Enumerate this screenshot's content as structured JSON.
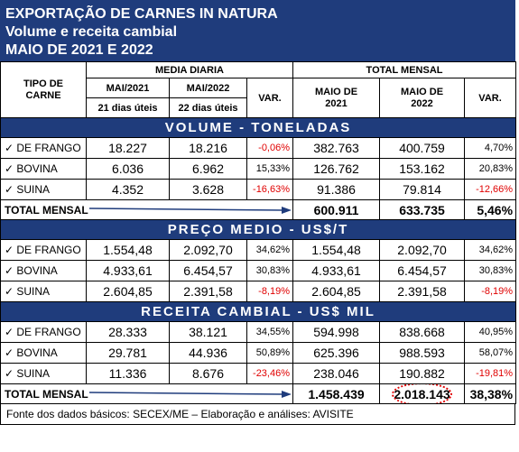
{
  "title": [
    "EXPORTAÇÃO DE CARNES IN NATURA",
    "Volume e receita cambial",
    "MAIO DE 2021 E 2022"
  ],
  "header": {
    "tipo": "TIPO DE CARNE",
    "media": "MEDIA DIARIA",
    "total": "TOTAL MENSAL",
    "mai2021": "MAI/2021",
    "mai2022": "MAI/2022",
    "dias2021": "21 dias úteis",
    "dias2022": "22 dias úteis",
    "var1": "VAR.",
    "maio2021": "MAIO DE 2021",
    "maio2022": "MAIO DE 2022",
    "var2": "VAR."
  },
  "sections": [
    {
      "title": "VOLUME - TONELADAS",
      "rows": [
        [
          "✓ DE FRANGO",
          "18.227",
          "18.216",
          "-0,06%",
          "382.763",
          "400.759",
          "4,70%"
        ],
        [
          "✓ BOVINA",
          "6.036",
          "6.962",
          "15,33%",
          "126.762",
          "153.162",
          "20,83%"
        ],
        [
          "✓ SUINA",
          "4.352",
          "3.628",
          "-16,63%",
          "91.386",
          "79.814",
          "-12,66%"
        ]
      ],
      "total": [
        "TOTAL MENSAL",
        "600.911",
        "633.735",
        "5,46%"
      ]
    },
    {
      "title": "PREÇO MEDIO - US$/T",
      "rows": [
        [
          "✓ DE FRANGO",
          "1.554,48",
          "2.092,70",
          "34,62%",
          "1.554,48",
          "2.092,70",
          "34,62%"
        ],
        [
          "✓ BOVINA",
          "4.933,61",
          "6.454,57",
          "30,83%",
          "4.933,61",
          "6.454,57",
          "30,83%"
        ],
        [
          "✓ SUINA",
          "2.604,85",
          "2.391,58",
          "-8,19%",
          "2.604,85",
          "2.391,58",
          "-8,19%"
        ]
      ]
    },
    {
      "title": "RECEITA CAMBIAL - US$ MIL",
      "rows": [
        [
          "✓ DE FRANGO",
          "28.333",
          "38.121",
          "34,55%",
          "594.998",
          "838.668",
          "40,95%"
        ],
        [
          "✓ BOVINA",
          "29.781",
          "44.936",
          "50,89%",
          "625.396",
          "988.593",
          "58,07%"
        ],
        [
          "✓ SUINA",
          "11.336",
          "8.676",
          "-23,46%",
          "238.046",
          "190.882",
          "-19,81%"
        ]
      ],
      "total": [
        "TOTAL MENSAL",
        "1.458.439",
        "2.018.143",
        "38,38%"
      ]
    }
  ],
  "footer": "Fonte dos dados básicos: SECEX/ME – Elaboração e análises: AVISITE"
}
